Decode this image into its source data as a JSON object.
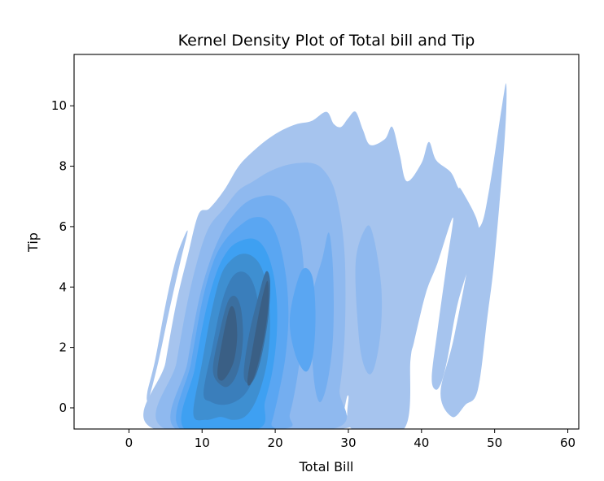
{
  "chart_data": {
    "type": "kde",
    "title": "Kernel Density Plot of Total bill and Tip",
    "xlabel": "Total Bill",
    "ylabel": "Tip",
    "xlim": [
      -7.5,
      61.5
    ],
    "ylim": [
      -0.7,
      11.7
    ],
    "xticks": [
      0,
      10,
      20,
      30,
      40,
      50,
      60
    ],
    "yticks": [
      0,
      2,
      4,
      6,
      8,
      10
    ],
    "grid": false,
    "fill_color": "#4a90e2",
    "levels": [
      {
        "level": 1,
        "color": "#a6c4ee",
        "regions": [
          [
            [
              3.5,
              -0.7
            ],
            [
              5,
              1.5
            ],
            [
              6.5,
              3.5
            ],
            [
              8,
              5
            ],
            [
              9.5,
              6.4
            ],
            [
              11,
              6.6
            ],
            [
              13,
              7.2
            ],
            [
              15,
              8
            ],
            [
              17,
              8.5
            ],
            [
              19,
              8.9
            ],
            [
              21,
              9.2
            ],
            [
              23,
              9.4
            ],
            [
              25,
              9.5
            ],
            [
              27,
              9.8
            ],
            [
              28,
              9.4
            ],
            [
              29,
              9.3
            ],
            [
              30,
              9.6
            ],
            [
              31,
              9.8
            ],
            [
              32,
              9.2
            ],
            [
              33,
              8.7
            ],
            [
              35,
              8.9
            ],
            [
              36,
              9.3
            ],
            [
              37,
              8.4
            ],
            [
              38,
              7.5
            ],
            [
              40,
              8.1
            ],
            [
              41,
              8.8
            ],
            [
              42,
              8.2
            ],
            [
              44,
              7.8
            ],
            [
              45,
              7.3
            ],
            [
              45.5,
              7.2
            ],
            [
              47.6,
              6.2
            ],
            [
              47.5,
              5.5
            ],
            [
              45,
              3.5
            ],
            [
              43.6,
              1.7
            ],
            [
              42.8,
              0.9
            ],
            [
              42,
              0.6
            ],
            [
              41.4,
              1
            ],
            [
              42.2,
              2.6
            ],
            [
              43.4,
              4.7
            ],
            [
              44.3,
              6.3
            ],
            [
              42.2,
              4.8
            ],
            [
              40.6,
              3.8
            ],
            [
              39,
              2.2
            ],
            [
              38.5,
              1.6
            ],
            [
              37.6,
              -0.7
            ],
            [
              30.5,
              -0.7
            ],
            [
              30,
              0.4
            ],
            [
              29.4,
              -0.1
            ],
            [
              28.8,
              -0.7
            ]
          ],
          [
            [
              2.7,
              0.3
            ],
            [
              4,
              1.5
            ],
            [
              5.5,
              3.2
            ],
            [
              7,
              4.8
            ],
            [
              8,
              5.8
            ],
            [
              7.6,
              5.7
            ],
            [
              6.4,
              4.9
            ],
            [
              5,
              3.4
            ],
            [
              3.6,
              1.6
            ],
            [
              2.5,
              0.5
            ]
          ],
          [
            [
              41.8,
              7.2
            ],
            [
              43.5,
              7.7
            ],
            [
              46,
              6.3
            ],
            [
              48,
              6
            ],
            [
              49.3,
              7.3
            ],
            [
              51,
              10
            ],
            [
              51.6,
              10.7
            ],
            [
              51.4,
              9
            ],
            [
              50,
              5
            ],
            [
              49,
              3
            ],
            [
              47.7,
              0.6
            ],
            [
              46,
              0.1
            ],
            [
              44.2,
              -0.3
            ],
            [
              42.6,
              0.5
            ],
            [
              44.5,
              2.4
            ],
            [
              47,
              5.8
            ],
            [
              45.7,
              6.4
            ],
            [
              44,
              7
            ]
          ],
          [
            [
              35.8,
              1.3
            ],
            [
              38,
              1.1
            ],
            [
              37.7,
              0.5
            ],
            [
              36.4,
              0.3
            ]
          ]
        ]
      },
      {
        "level": 2,
        "color": "#8fb9ef",
        "regions": [
          [
            [
              5,
              -0.7
            ],
            [
              6.5,
              1.5
            ],
            [
              8,
              3.5
            ],
            [
              9.5,
              5
            ],
            [
              11,
              6
            ],
            [
              13,
              6.6
            ],
            [
              15,
              7.2
            ],
            [
              17,
              7.5
            ],
            [
              19,
              7.8
            ],
            [
              21,
              8
            ],
            [
              23,
              8.1
            ],
            [
              25,
              8.1
            ],
            [
              26.5,
              7.9
            ],
            [
              28,
              7.3
            ],
            [
              29,
              6.2
            ],
            [
              29.5,
              5
            ],
            [
              29.6,
              3.5
            ],
            [
              29.4,
              2
            ],
            [
              28.8,
              0.6
            ],
            [
              27.8,
              -0.7
            ]
          ],
          [
            [
              31,
              4.8
            ],
            [
              32.5,
              6
            ],
            [
              33.5,
              5.6
            ],
            [
              34.5,
              4
            ],
            [
              34.4,
              2.5
            ],
            [
              33.5,
              1.3
            ],
            [
              32.5,
              1.2
            ],
            [
              31.5,
              2.2
            ]
          ]
        ]
      },
      {
        "level": 3,
        "color": "#74aef0",
        "regions": [
          [
            [
              6.4,
              -0.7
            ],
            [
              8,
              1.5
            ],
            [
              9.5,
              3.5
            ],
            [
              11,
              4.8
            ],
            [
              12.5,
              5.7
            ],
            [
              14,
              6.3
            ],
            [
              16,
              6.8
            ],
            [
              18,
              7
            ],
            [
              20,
              7
            ],
            [
              22,
              6.6
            ],
            [
              23.5,
              5.5
            ],
            [
              24,
              4
            ],
            [
              23.8,
              2.5
            ],
            [
              23,
              1
            ],
            [
              22,
              -0.2
            ],
            [
              21,
              -0.7
            ]
          ],
          [
            [
              25,
              3.5
            ],
            [
              26.5,
              5
            ],
            [
              27.3,
              5.8
            ],
            [
              27.8,
              5
            ],
            [
              28,
              3.5
            ],
            [
              27.8,
              2
            ],
            [
              27,
              0.7
            ],
            [
              26,
              0.2
            ],
            [
              25.2,
              1.2
            ]
          ]
        ]
      },
      {
        "level": 4,
        "color": "#5aa6f2",
        "regions": [
          [
            [
              7,
              -0.7
            ],
            [
              8.5,
              1.5
            ],
            [
              10,
              3.5
            ],
            [
              11.5,
              4.8
            ],
            [
              13,
              5.5
            ],
            [
              15,
              6
            ],
            [
              17,
              6.3
            ],
            [
              19,
              6.2
            ],
            [
              20.5,
              5.5
            ],
            [
              21.5,
              4.3
            ],
            [
              21.8,
              3
            ],
            [
              21.4,
              1.7
            ],
            [
              20.5,
              0.5
            ],
            [
              19.5,
              -0.5
            ],
            [
              19,
              -0.7
            ]
          ],
          [
            [
              22,
              3
            ],
            [
              23.5,
              4.5
            ],
            [
              25,
              4.4
            ],
            [
              25.5,
              3.2
            ],
            [
              25.2,
              1.8
            ],
            [
              24.2,
              1.2
            ],
            [
              22.7,
              1.8
            ]
          ]
        ]
      },
      {
        "level": 5,
        "color": "#3ea0f2",
        "regions": [
          [
            [
              7.6,
              -0.7
            ],
            [
              9,
              1.3
            ],
            [
              10.5,
              3.2
            ],
            [
              12,
              4.5
            ],
            [
              13.5,
              5.2
            ],
            [
              15,
              5.5
            ],
            [
              17,
              5.6
            ],
            [
              18.5,
              5.3
            ],
            [
              19.6,
              4.6
            ],
            [
              20.2,
              3.6
            ],
            [
              20.2,
              2.4
            ],
            [
              19.6,
              1.2
            ],
            [
              18.6,
              0.2
            ],
            [
              17.6,
              -0.7
            ]
          ]
        ]
      },
      {
        "level": 6,
        "color": "#3e8fd1",
        "regions": [
          [
            [
              8.8,
              -0.2
            ],
            [
              10,
              1.5
            ],
            [
              11.3,
              3.2
            ],
            [
              12.6,
              4.4
            ],
            [
              14,
              4.9
            ],
            [
              15.5,
              5.1
            ],
            [
              17,
              5
            ],
            [
              18.2,
              4.6
            ],
            [
              19,
              3.8
            ],
            [
              19.3,
              2.8
            ],
            [
              19,
              1.7
            ],
            [
              18.2,
              0.8
            ],
            [
              17.1,
              0.1
            ],
            [
              15.8,
              -0.3
            ],
            [
              14.2,
              -0.4
            ],
            [
              12.5,
              -0.3
            ],
            [
              10.5,
              -0.4
            ]
          ]
        ]
      },
      {
        "level": 7,
        "color": "#3a7ebb",
        "regions": [
          [
            [
              10.2,
              0.5
            ],
            [
              11.4,
              2
            ],
            [
              12.6,
              3.4
            ],
            [
              13.8,
              4.2
            ],
            [
              15,
              4.5
            ],
            [
              16.3,
              4.4
            ],
            [
              17.3,
              3.9
            ],
            [
              17.9,
              3
            ],
            [
              17.9,
              2
            ],
            [
              17.2,
              1.1
            ],
            [
              16,
              0.5
            ],
            [
              14.5,
              0.2
            ],
            [
              12.8,
              0.1
            ],
            [
              11.2,
              0.2
            ]
          ]
        ]
      },
      {
        "level": 8,
        "color": "#3b6fa0",
        "regions": [
          [
            [
              11.5,
              1.2
            ],
            [
              12.4,
              2.5
            ],
            [
              13.5,
              3.5
            ],
            [
              14.5,
              3.7
            ],
            [
              15.3,
              3.3
            ],
            [
              15.6,
              2.4
            ],
            [
              15.2,
              1.5
            ],
            [
              14.3,
              0.9
            ],
            [
              13,
              0.7
            ]
          ],
          [
            [
              15.7,
              1.1
            ],
            [
              16.4,
              2.4
            ],
            [
              17.6,
              3.6
            ],
            [
              18.7,
              4.5
            ],
            [
              19.3,
              4.2
            ],
            [
              19.1,
              3.1
            ],
            [
              18.3,
              1.9
            ],
            [
              17.4,
              1.1
            ],
            [
              16.5,
              0.8
            ]
          ]
        ]
      },
      {
        "level": 9,
        "color": "#3a5f85",
        "regions": [
          [
            [
              12.1,
              1.2
            ],
            [
              12.9,
              2.4
            ],
            [
              13.8,
              3.3
            ],
            [
              14.5,
              3.2
            ],
            [
              14.8,
              2.4
            ],
            [
              14.4,
              1.6
            ],
            [
              13.5,
              1.1
            ],
            [
              12.6,
              0.9
            ]
          ],
          [
            [
              16.2,
              0.9
            ],
            [
              17,
              2.1
            ],
            [
              18,
              3.4
            ],
            [
              18.9,
              4.2
            ],
            [
              19.1,
              3.6
            ],
            [
              18.6,
              2.5
            ],
            [
              17.6,
              1.4
            ],
            [
              16.7,
              0.8
            ]
          ]
        ]
      }
    ]
  }
}
